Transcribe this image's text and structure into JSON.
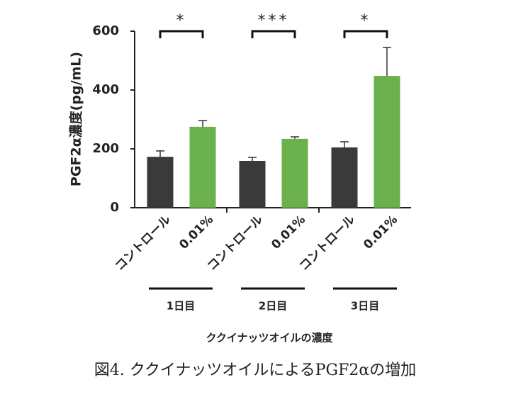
{
  "chart_data": {
    "type": "bar",
    "ylabel": "PGF2α濃度(pg/mL)",
    "xlabel": "ククイナッツオイルの濃度",
    "caption": "図4. ククイナッツオイルによるPGF2αの増加",
    "categories": [
      "コントロール",
      "0.01%",
      "コントロール",
      "0.01%",
      "コントロール",
      "0.01%"
    ],
    "values": [
      173,
      275,
      159,
      234,
      205,
      448
    ],
    "errors": [
      20,
      21,
      12,
      7,
      19,
      97
    ],
    "colors": [
      "#3a3a3a",
      "#6ab04c",
      "#3a3a3a",
      "#6ab04c",
      "#3a3a3a",
      "#6ab04c"
    ],
    "groups": [
      "1日目",
      "2日目",
      "3日目"
    ],
    "significance": [
      "*",
      "***",
      "*"
    ],
    "ylim": [
      0,
      600
    ],
    "yticks": [
      0,
      200,
      400,
      600
    ]
  }
}
